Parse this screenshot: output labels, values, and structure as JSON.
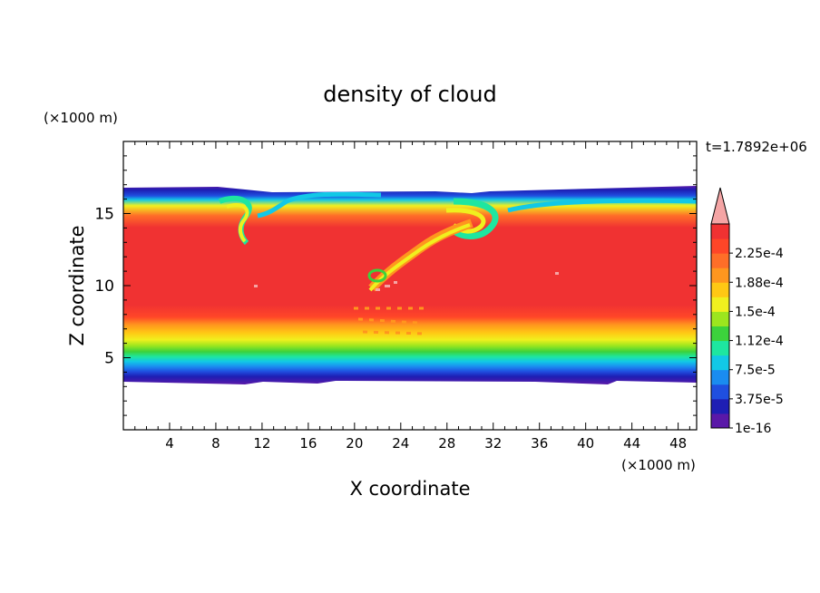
{
  "chart_data": {
    "type": "heatmap",
    "title": "density of cloud",
    "xlabel": "X coordinate",
    "ylabel": "Z coordinate",
    "x_unit": "(×1000 m)",
    "y_unit": "(×1000 m)",
    "time_label": "t=1.7892e+06",
    "xlim": [
      0,
      49.6
    ],
    "ylim": [
      0,
      20
    ],
    "xticks": [
      4,
      8,
      12,
      16,
      20,
      24,
      28,
      32,
      36,
      40,
      44,
      48
    ],
    "yticks": [
      5,
      10,
      15
    ],
    "colorbar": {
      "labels": [
        "1e-16",
        "3.75e-5",
        "7.5e-5",
        "1.12e-4",
        "1.5e-4",
        "1.88e-4",
        "2.25e-4"
      ],
      "colors": [
        "#5a18a8",
        "#1e1eb4",
        "#1f4fe0",
        "#1a8cf0",
        "#12c8e6",
        "#1ee6a0",
        "#3cd23c",
        "#9ce61e",
        "#f0f01e",
        "#ffc814",
        "#ff961e",
        "#ff6e28",
        "#ff4628",
        "#f03232",
        "#f5a5a5"
      ],
      "extend": "max"
    },
    "cloud_layer": {
      "base_km": 3.4,
      "top_km": 16.8,
      "structure": "core ~2.3e-4 between 7 and 15 km; decreasing to 1e-16 at base and top; dissipating plume from x=22 z=10 to x=31 z=15"
    }
  }
}
